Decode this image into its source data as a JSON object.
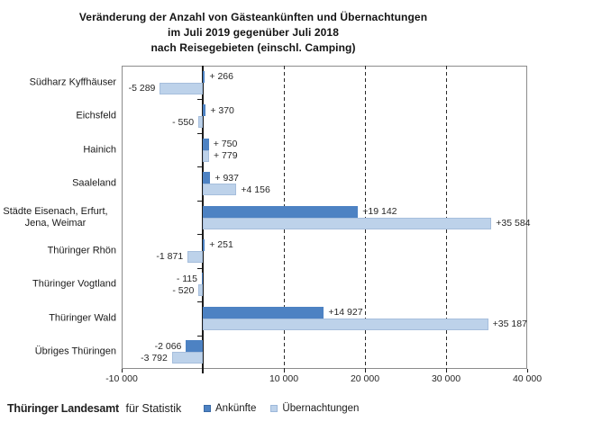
{
  "title": {
    "lines": [
      "Veränderung der Anzahl von Gästeankünften und Übernachtungen",
      "im Juli 2019 gegenüber Juli 2018",
      "nach Reisegebieten (einschl. Camping)"
    ]
  },
  "footer": {
    "org_name": "Thüringer Landesamt",
    "org_suffix": "für Statistik"
  },
  "legend": {
    "items": [
      {
        "key": "ankuenfte",
        "label": "Ankünfte",
        "color": "#4d82c3",
        "border": "#3a6aa6"
      },
      {
        "key": "uebernachtungen",
        "label": "Übernachtungen",
        "color": "#bdd2ea",
        "border": "#9db8da"
      }
    ]
  },
  "chart_data": {
    "type": "bar",
    "orientation": "horizontal",
    "title": "Veränderung der Anzahl von Gästeankünften und Übernachtungen im Juli 2019 gegenüber Juli 2018 nach Reisegebieten (einschl. Camping)",
    "categories": [
      "Südharz Kyffhäuser",
      "Eichsfeld",
      "Hainich",
      "Saaleland",
      "Städte Eisenach, Erfurt,\nJena, Weimar",
      "Thüringer Rhön",
      "Thüringer Vogtland",
      "Thüringer Wald",
      "Übriges Thüringen"
    ],
    "series": [
      {
        "name": "Ankünfte",
        "key": "ankuenfte",
        "color": "#4d82c3",
        "values": [
          266,
          370,
          750,
          937,
          19142,
          251,
          -115,
          14927,
          -2066
        ],
        "labels": [
          "+ 266",
          "+ 370",
          "+ 750",
          "+ 937",
          "+19 142",
          "+ 251",
          "- 115",
          "+14 927",
          "-2 066"
        ]
      },
      {
        "name": "Übernachtungen",
        "key": "uebernachtungen",
        "color": "#bdd2ea",
        "values": [
          -5289,
          -550,
          779,
          4156,
          35584,
          -1871,
          -520,
          35187,
          -3792
        ],
        "labels": [
          "-5 289",
          "- 550",
          "+ 779",
          "+4 156",
          "+35 584",
          "-1 871",
          "- 520",
          "+35 187",
          "-3 792"
        ]
      }
    ],
    "xlim": [
      -10000,
      40000
    ],
    "x_ticks": [
      {
        "value": -10000,
        "label": "-10 000"
      },
      {
        "value": 10000,
        "label": "10 000"
      },
      {
        "value": 20000,
        "label": "20 000"
      },
      {
        "value": 30000,
        "label": "30 000"
      },
      {
        "value": 40000,
        "label": "40 000"
      }
    ],
    "gridline_values": [
      10000,
      20000,
      30000
    ],
    "grid": "dashed-vertical",
    "legend_position": "bottom"
  }
}
